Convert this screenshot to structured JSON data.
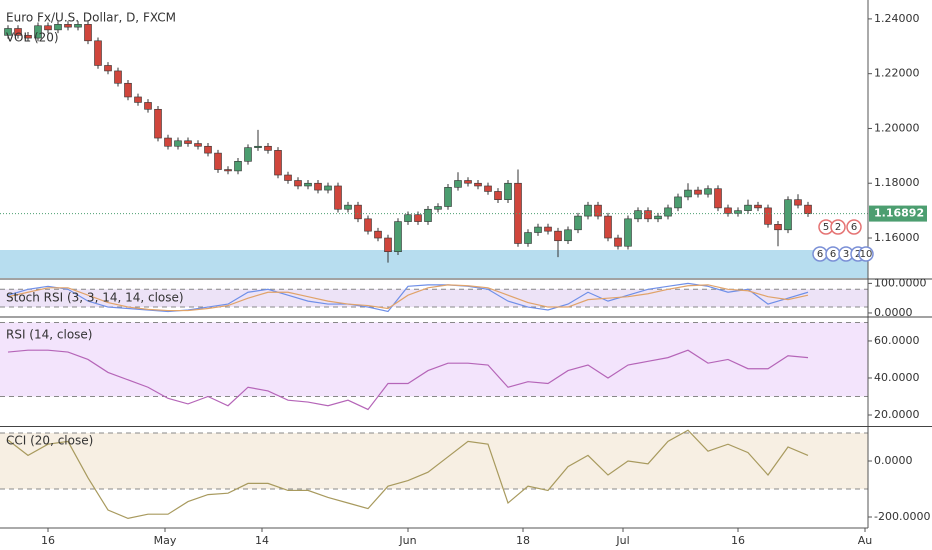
{
  "chart_data": [
    {
      "type": "candlestick",
      "title": "Euro Fx/U.S. Dollar, D, FXCM",
      "subtitle": "VOL (20)",
      "up_color": "#4c9e70",
      "down_color": "#d0463c",
      "xlim": [
        -0.8,
        86
      ],
      "ylim": [
        1.1454,
        1.2469
      ],
      "yticks": [
        {
          "value": 1.24,
          "label": "1.24000"
        },
        {
          "value": 1.22,
          "label": "1.22000"
        },
        {
          "value": 1.2,
          "label": "1.20000"
        },
        {
          "value": 1.18,
          "label": "1.18000"
        },
        {
          "value": 1.16,
          "label": "1.16000"
        }
      ],
      "last_price": {
        "value": 1.16892,
        "label": "1.16892"
      },
      "annotations": [
        "5",
        "2",
        "6",
        "6",
        "6",
        "3",
        "2",
        "10"
      ],
      "open": [
        1.234,
        1.2365,
        1.234,
        1.233,
        1.2375,
        1.236,
        1.238,
        1.237,
        1.238,
        1.232,
        1.223,
        1.221,
        1.2165,
        1.2115,
        1.2095,
        1.207,
        1.1965,
        1.1935,
        1.1955,
        1.1945,
        1.1935,
        1.191,
        1.185,
        1.1845,
        1.188,
        1.193,
        1.1935,
        1.192,
        1.183,
        1.181,
        1.179,
        1.18,
        1.1775,
        1.179,
        1.1705,
        1.172,
        1.167,
        1.1625,
        1.16,
        1.155,
        1.166,
        1.1685,
        1.166,
        1.1705,
        1.1715,
        1.1785,
        1.181,
        1.18,
        1.179,
        1.177,
        1.174,
        1.18,
        1.158,
        1.162,
        1.164,
        1.1625,
        1.159,
        1.163,
        1.168,
        1.172,
        1.168,
        1.16,
        1.157,
        1.167,
        1.17,
        1.167,
        1.168,
        1.171,
        1.175,
        1.1775,
        1.176,
        1.178,
        1.171,
        1.169,
        1.17,
        1.172,
        1.171,
        1.165,
        1.163,
        1.174,
        1.172
      ],
      "high": [
        1.2377,
        1.2377,
        1.2352,
        1.2387,
        1.2387,
        1.2392,
        1.2392,
        1.2392,
        1.2392,
        1.2332,
        1.2242,
        1.2222,
        1.2177,
        1.2127,
        1.2107,
        1.2082,
        1.1977,
        1.1967,
        1.1967,
        1.1957,
        1.1947,
        1.1922,
        1.1862,
        1.1892,
        1.1942,
        1.1995,
        1.1947,
        1.1932,
        1.1842,
        1.1822,
        1.1812,
        1.1812,
        1.1802,
        1.1802,
        1.1732,
        1.1732,
        1.1682,
        1.1637,
        1.1612,
        1.1672,
        1.1697,
        1.1697,
        1.1717,
        1.1727,
        1.1797,
        1.184,
        1.1822,
        1.1812,
        1.1802,
        1.1782,
        1.1812,
        1.185,
        1.1632,
        1.1652,
        1.1652,
        1.1637,
        1.1642,
        1.1692,
        1.1732,
        1.1732,
        1.1692,
        1.1612,
        1.1682,
        1.1712,
        1.1712,
        1.1692,
        1.1722,
        1.1762,
        1.18,
        1.1787,
        1.1792,
        1.1792,
        1.1722,
        1.1712,
        1.174,
        1.1732,
        1.1722,
        1.1662,
        1.1752,
        1.176,
        1.1732
      ],
      "low": [
        1.2328,
        1.2328,
        1.2318,
        1.2318,
        1.2348,
        1.2348,
        1.2358,
        1.2358,
        1.2308,
        1.2218,
        1.2198,
        1.2153,
        1.2103,
        1.2083,
        1.2058,
        1.1953,
        1.1923,
        1.1923,
        1.1933,
        1.1923,
        1.1898,
        1.1838,
        1.1833,
        1.1833,
        1.1868,
        1.1918,
        1.1908,
        1.1818,
        1.1798,
        1.1778,
        1.1778,
        1.1763,
        1.1763,
        1.1693,
        1.1693,
        1.1658,
        1.1613,
        1.1588,
        1.151,
        1.1538,
        1.1648,
        1.1648,
        1.1648,
        1.1693,
        1.1703,
        1.1773,
        1.1788,
        1.1778,
        1.1758,
        1.1728,
        1.1728,
        1.1568,
        1.1568,
        1.1608,
        1.1613,
        1.153,
        1.1578,
        1.1618,
        1.1668,
        1.1668,
        1.1588,
        1.1558,
        1.1558,
        1.1658,
        1.1658,
        1.1658,
        1.1668,
        1.1698,
        1.1738,
        1.1748,
        1.1748,
        1.1698,
        1.1678,
        1.1678,
        1.1688,
        1.1698,
        1.1638,
        1.157,
        1.1618,
        1.1708,
        1.1677
      ],
      "close": [
        1.2365,
        1.234,
        1.233,
        1.2375,
        1.236,
        1.238,
        1.237,
        1.238,
        1.232,
        1.223,
        1.221,
        1.2165,
        1.2115,
        1.2095,
        1.207,
        1.1965,
        1.1935,
        1.1955,
        1.1945,
        1.1935,
        1.191,
        1.185,
        1.1845,
        1.188,
        1.193,
        1.1935,
        1.192,
        1.183,
        1.181,
        1.179,
        1.18,
        1.1775,
        1.179,
        1.1705,
        1.172,
        1.167,
        1.1625,
        1.16,
        1.155,
        1.166,
        1.1685,
        1.166,
        1.1705,
        1.1715,
        1.1785,
        1.181,
        1.18,
        1.179,
        1.177,
        1.174,
        1.18,
        1.158,
        1.162,
        1.164,
        1.1625,
        1.159,
        1.163,
        1.168,
        1.172,
        1.168,
        1.16,
        1.157,
        1.167,
        1.17,
        1.167,
        1.168,
        1.171,
        1.175,
        1.1775,
        1.176,
        1.178,
        1.171,
        1.169,
        1.17,
        1.172,
        1.171,
        1.165,
        1.163,
        1.174,
        1.172,
        1.1689
      ]
    },
    {
      "type": "line",
      "title": "Stoch RSI (3, 3, 14, 14, close)",
      "band": [
        20,
        80
      ],
      "band_color": "#ede3f7",
      "xlim": [
        -0.8,
        86
      ],
      "ylim": [
        -10.3,
        111.4
      ],
      "yticks": [
        {
          "value": 100,
          "label": "100.0000"
        },
        {
          "value": 0,
          "label": "0.0000"
        }
      ],
      "x": [
        0,
        2,
        4,
        6,
        8,
        10,
        12,
        14,
        16,
        18,
        20,
        22,
        24,
        26,
        28,
        30,
        32,
        34,
        36,
        38,
        40,
        42,
        44,
        46,
        48,
        50,
        52,
        54,
        56,
        58,
        60,
        62,
        64,
        66,
        68,
        70,
        72,
        74,
        76,
        78,
        80
      ],
      "series": [
        {
          "color": "#6f8fe8",
          "values": [
            60,
            80,
            90,
            80,
            40,
            20,
            15,
            10,
            5,
            10,
            20,
            30,
            70,
            80,
            60,
            40,
            30,
            30,
            20,
            5,
            90,
            95,
            95,
            90,
            80,
            40,
            20,
            10,
            30,
            70,
            40,
            60,
            80,
            90,
            100,
            90,
            70,
            80,
            30,
            50,
            70
          ]
        },
        {
          "color": "#e0a36a",
          "values": [
            55,
            70,
            85,
            85,
            60,
            35,
            20,
            12,
            8,
            8,
            15,
            25,
            50,
            70,
            70,
            55,
            40,
            30,
            25,
            15,
            60,
            85,
            95,
            92,
            85,
            60,
            35,
            20,
            20,
            45,
            50,
            55,
            65,
            80,
            92,
            95,
            80,
            75,
            55,
            45,
            60
          ]
        }
      ]
    },
    {
      "type": "line",
      "title": "RSI (14, close)",
      "band": [
        30,
        70
      ],
      "band_color": "#f3e4fc",
      "xlim": [
        -0.8,
        86
      ],
      "ylim": [
        14.6,
        72.4
      ],
      "yticks": [
        {
          "value": 60,
          "label": "60.0000"
        },
        {
          "value": 40,
          "label": "40.0000"
        },
        {
          "value": 20,
          "label": "20.0000"
        }
      ],
      "x": [
        0,
        2,
        4,
        6,
        8,
        10,
        12,
        14,
        16,
        18,
        20,
        22,
        24,
        26,
        28,
        30,
        32,
        34,
        36,
        38,
        40,
        42,
        44,
        46,
        48,
        50,
        52,
        54,
        56,
        58,
        60,
        62,
        64,
        66,
        68,
        70,
        72,
        74,
        76,
        78,
        80
      ],
      "series": [
        {
          "color": "#b565b8",
          "values": [
            54,
            55,
            55,
            54,
            50,
            43,
            39,
            35,
            29,
            26,
            30,
            25,
            35,
            33,
            28,
            27,
            25,
            28,
            23,
            37,
            37,
            44,
            48,
            48,
            47,
            35,
            38,
            37,
            44,
            47,
            40,
            47,
            49,
            51,
            55,
            48,
            50,
            45,
            45,
            52,
            51
          ]
        }
      ]
    },
    {
      "type": "line",
      "title": "CCI (20, close)",
      "band": [
        -100,
        100
      ],
      "band_color": "#f7efe3",
      "xlim": [
        -0.8,
        86
      ],
      "ylim": [
        -239.3,
        117.9
      ],
      "yticks": [
        {
          "value": 0,
          "label": "0.0000"
        },
        {
          "value": -200,
          "label": "-200.0000"
        }
      ],
      "xticks": [
        {
          "value": 4,
          "label": "16"
        },
        {
          "value": 15.7,
          "label": "May"
        },
        {
          "value": 25.4,
          "label": "14"
        },
        {
          "value": 40,
          "label": "Jun"
        },
        {
          "value": 51.5,
          "label": "18"
        },
        {
          "value": 61.5,
          "label": "Jul"
        },
        {
          "value": 73,
          "label": "16"
        },
        {
          "value": 85.7,
          "label": "Au"
        }
      ],
      "x": [
        0,
        2,
        4,
        6,
        8,
        10,
        12,
        14,
        16,
        18,
        20,
        22,
        24,
        26,
        28,
        30,
        32,
        34,
        36,
        38,
        40,
        42,
        44,
        46,
        48,
        50,
        52,
        54,
        56,
        58,
        60,
        62,
        64,
        66,
        68,
        70,
        72,
        74,
        76,
        78,
        80
      ],
      "series": [
        {
          "color": "#a89a5e",
          "values": [
            75,
            20,
            60,
            70,
            -60,
            -175,
            -205,
            -190,
            -190,
            -145,
            -120,
            -115,
            -80,
            -80,
            -105,
            -105,
            -130,
            -150,
            -170,
            -90,
            -70,
            -40,
            15,
            70,
            60,
            -150,
            -90,
            -105,
            -20,
            20,
            -50,
            0,
            -10,
            70,
            110,
            35,
            60,
            30,
            -50,
            50,
            20
          ]
        }
      ]
    }
  ]
}
